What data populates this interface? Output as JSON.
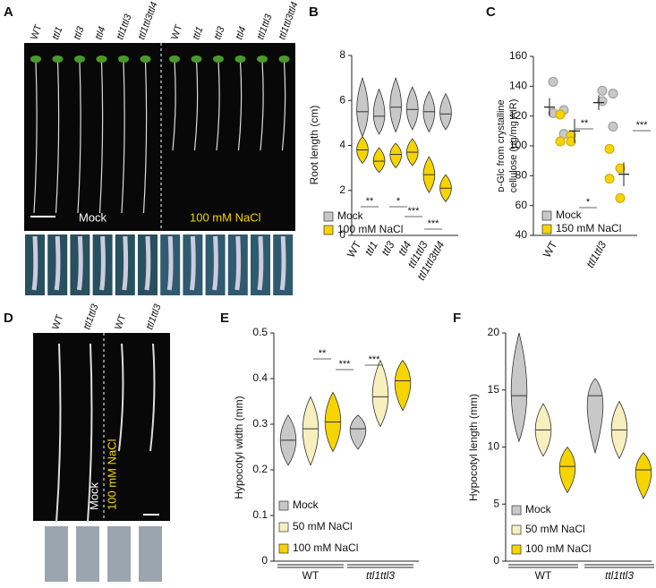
{
  "panels": [
    "A",
    "B",
    "C",
    "D",
    "E",
    "F"
  ],
  "photo_a": {
    "genotypes": [
      "WT",
      "ttl1",
      "ttl3",
      "ttl4",
      "ttl1ttl3",
      "ttl1ttl3ttl4"
    ],
    "left_label": "Mock",
    "right_label": "100 mM NaCl"
  },
  "photo_d": {
    "genotypes": [
      "WT",
      "ttl1ttl3",
      "WT",
      "ttl1ttl3"
    ],
    "left_label": "Mock",
    "right_label": "100 mM NaCl"
  },
  "chart_data": [
    {
      "type": "violin",
      "ylabel": "Root length (cm)",
      "categories": [
        "WT",
        "ttl1",
        "ttl3",
        "ttl4",
        "ttl1ttl3",
        "ttl1ttl3ttl4"
      ],
      "series": [
        {
          "name": "Mock",
          "color": "#c8c8c8",
          "values": [
            5.5,
            5.3,
            5.7,
            5.6,
            5.5,
            5.4
          ],
          "min": [
            4.4,
            4.5,
            4.6,
            4.7,
            4.6,
            4.7
          ],
          "max": [
            7.0,
            6.5,
            7.0,
            6.6,
            6.4,
            6.3
          ]
        },
        {
          "name": "100 mM NaCl",
          "color": "#f5d400",
          "values": [
            3.8,
            3.3,
            3.6,
            3.7,
            2.7,
            2.1
          ],
          "min": [
            3.2,
            2.8,
            3.0,
            3.1,
            1.9,
            1.5
          ],
          "max": [
            4.4,
            3.9,
            4.1,
            4.3,
            3.5,
            2.7
          ]
        }
      ],
      "ylim": [
        0,
        8
      ],
      "yticks": [
        0,
        2,
        4,
        6,
        8
      ],
      "annotations": [
        "**",
        "*",
        "***",
        "***"
      ]
    },
    {
      "type": "scatter",
      "ylabel": [
        "ᴅ-Glc from crystalline",
        "cellulose (µg/mg AIR)"
      ],
      "categories": [
        "WT",
        "ttl1ttl3"
      ],
      "series": [
        {
          "name": "Mock",
          "color": "#c8c8c8",
          "values": [
            [
              143,
              124,
              122,
              108
            ],
            [
              137,
              135,
              130,
              113
            ]
          ],
          "mean": [
            126,
            129
          ],
          "error": [
            6,
            5
          ]
        },
        {
          "name": "150 mM NaCl",
          "color": "#f5d400",
          "values": [
            [
              121,
              107,
              103,
              103
            ],
            [
              98,
              85,
              78,
              65
            ]
          ],
          "mean": [
            110,
            81
          ],
          "error": [
            8,
            8
          ]
        }
      ],
      "ylim": [
        40,
        160
      ],
      "yticks": [
        40,
        60,
        80,
        100,
        120,
        140,
        160
      ],
      "annotations": [
        "**",
        "***",
        "*"
      ]
    },
    {
      "type": "violin",
      "ylabel": "Hypocotyl width (mm)",
      "categories": [
        "WT",
        "ttl1ttl3"
      ],
      "series": [
        {
          "name": "Mock",
          "color": "#c8c8c8",
          "values": [
            0.265,
            0.29
          ],
          "min": [
            0.21,
            0.245
          ],
          "max": [
            0.32,
            0.32
          ]
        },
        {
          "name": "50 mM NaCl",
          "color": "#f7efbe",
          "values": [
            0.29,
            0.36
          ],
          "min": [
            0.21,
            0.295
          ],
          "max": [
            0.36,
            0.44
          ]
        },
        {
          "name": "100 mM NaCl",
          "color": "#f5d400",
          "values": [
            0.305,
            0.395
          ],
          "min": [
            0.24,
            0.33
          ],
          "max": [
            0.37,
            0.44
          ]
        }
      ],
      "ylim": [
        0,
        0.5
      ],
      "yticks": [
        0,
        0.1,
        0.2,
        0.3,
        0.4,
        0.5
      ],
      "annotations": [
        "**",
        "***",
        "***"
      ]
    },
    {
      "type": "violin",
      "ylabel": "Hypocotyl length (mm)",
      "categories": [
        "WT",
        "ttl1ttl3"
      ],
      "series": [
        {
          "name": "Mock",
          "color": "#c8c8c8",
          "values": [
            14.5,
            14.5
          ],
          "min": [
            10.5,
            9.5
          ],
          "max": [
            20,
            16
          ]
        },
        {
          "name": "50 mM NaCl",
          "color": "#f7efbe",
          "values": [
            11.5,
            11.5
          ],
          "min": [
            9.2,
            9
          ],
          "max": [
            13.8,
            14
          ]
        },
        {
          "name": "100 mM NaCl",
          "color": "#f5d400",
          "values": [
            8.3,
            8.0
          ],
          "min": [
            6,
            5.5
          ],
          "max": [
            10,
            9.5
          ]
        }
      ],
      "ylim": [
        0,
        20
      ],
      "yticks": [
        0,
        5,
        10,
        15,
        20
      ],
      "annotations": []
    }
  ]
}
